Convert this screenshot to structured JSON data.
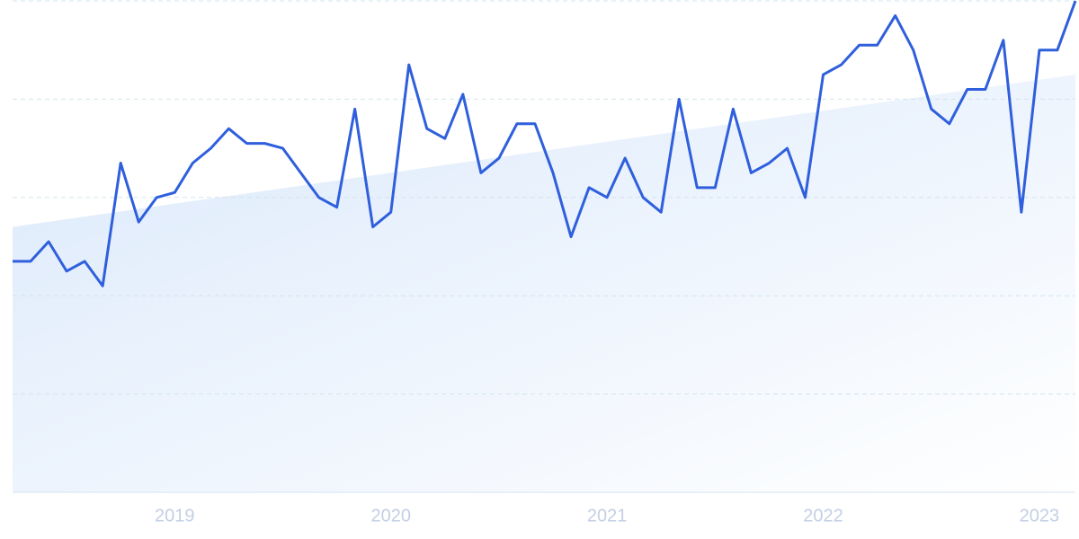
{
  "chart_data": {
    "type": "line",
    "categories": [
      null,
      null,
      null,
      null,
      null,
      null,
      null,
      null,
      null,
      "2019",
      null,
      null,
      null,
      null,
      null,
      null,
      null,
      null,
      null,
      null,
      null,
      "2020",
      null,
      null,
      null,
      null,
      null,
      null,
      null,
      null,
      null,
      null,
      null,
      "2021",
      null,
      null,
      null,
      null,
      null,
      null,
      null,
      null,
      null,
      null,
      null,
      "2022",
      null,
      null,
      null,
      null,
      null,
      null,
      null,
      null,
      null,
      null,
      null,
      "2023",
      null,
      null
    ],
    "values": [
      47,
      47,
      51,
      45,
      47,
      42,
      67,
      55,
      60,
      61,
      67,
      70,
      74,
      71,
      71,
      70,
      65,
      60,
      58,
      78,
      54,
      57,
      87,
      74,
      72,
      81,
      65,
      68,
      75,
      75,
      65,
      52,
      62,
      60,
      68,
      60,
      57,
      80,
      62,
      62,
      78,
      65,
      67,
      70,
      60,
      85,
      87,
      91,
      91,
      97,
      90,
      78,
      75,
      82,
      82,
      92,
      57,
      90,
      90,
      100
    ],
    "color": "#2f5fdc",
    "trend": [
      54,
      85
    ],
    "trend_color": "#dbe9fb",
    "ylim": [
      0,
      100
    ],
    "yticks": [
      0,
      20,
      40,
      60,
      80,
      100
    ],
    "grid": true
  }
}
